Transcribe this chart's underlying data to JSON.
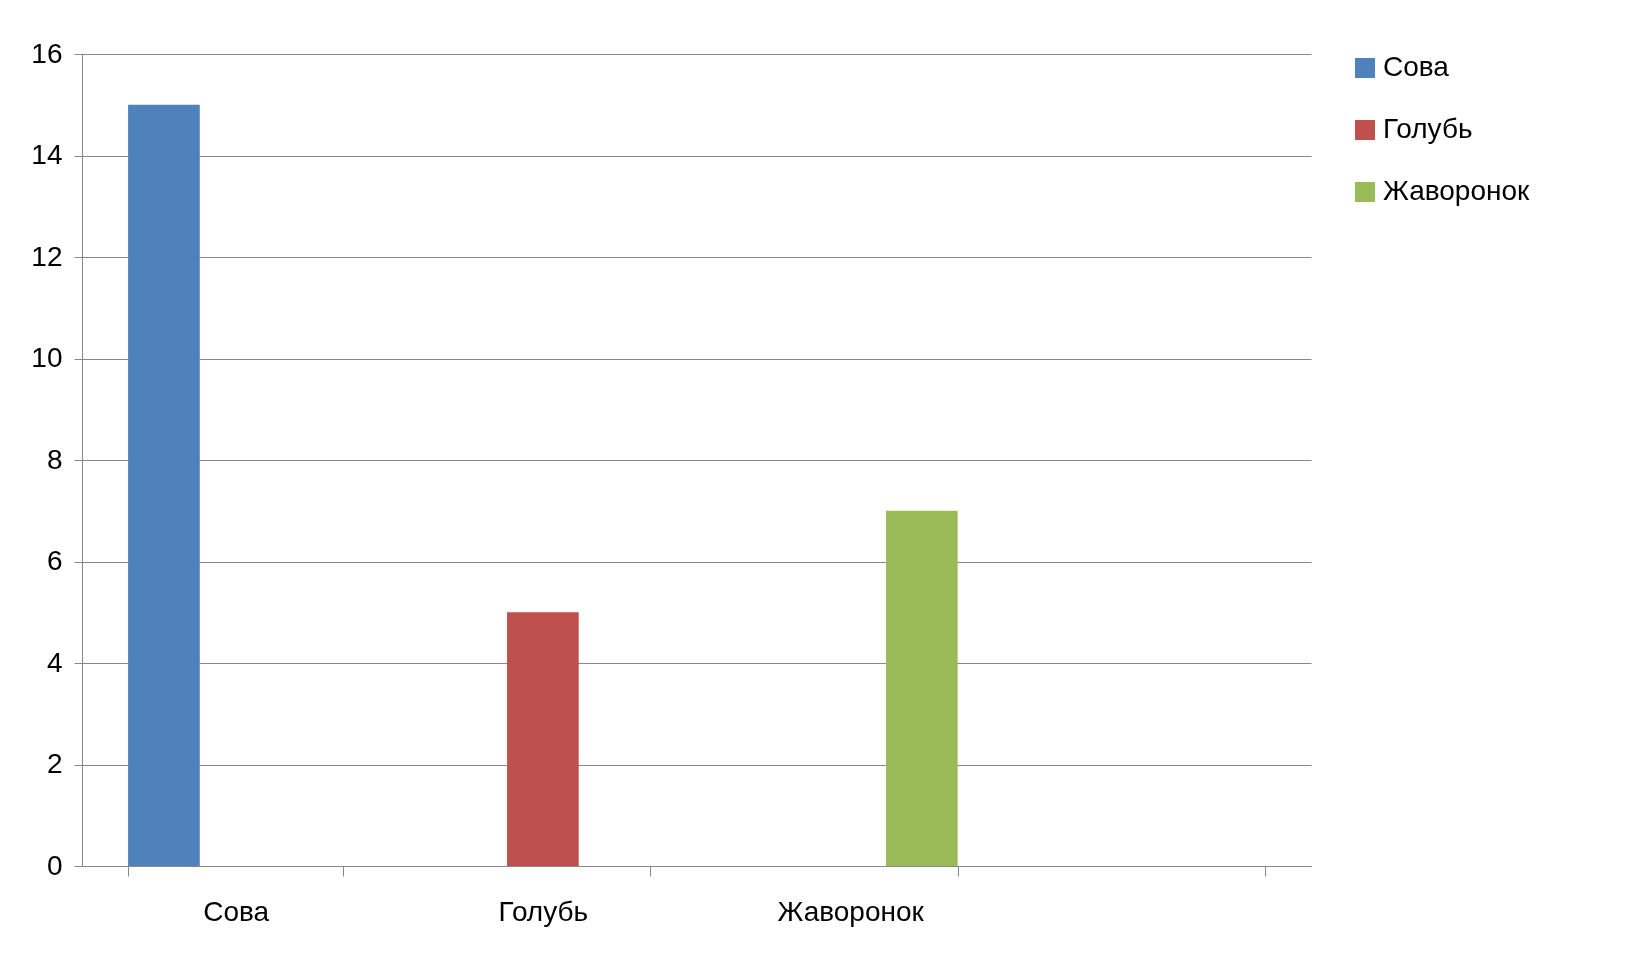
{
  "chart_data": {
    "type": "bar",
    "categories": [
      "Сова",
      "Голубь",
      "Жаворонок",
      null
    ],
    "series": [
      {
        "name": "Сова",
        "color": "#4f81bd",
        "values": [
          15,
          null,
          null,
          null
        ]
      },
      {
        "name": "Голубь",
        "color": "#c0504d",
        "values": [
          null,
          5,
          null,
          null
        ]
      },
      {
        "name": "Жаворонок",
        "color": "#9bbb59",
        "values": [
          null,
          null,
          7,
          null
        ]
      }
    ],
    "ylim": [
      0,
      16
    ],
    "yticks": [
      0,
      2,
      4,
      6,
      8,
      10,
      12,
      14,
      16
    ],
    "grid": "y",
    "legend": "right"
  }
}
